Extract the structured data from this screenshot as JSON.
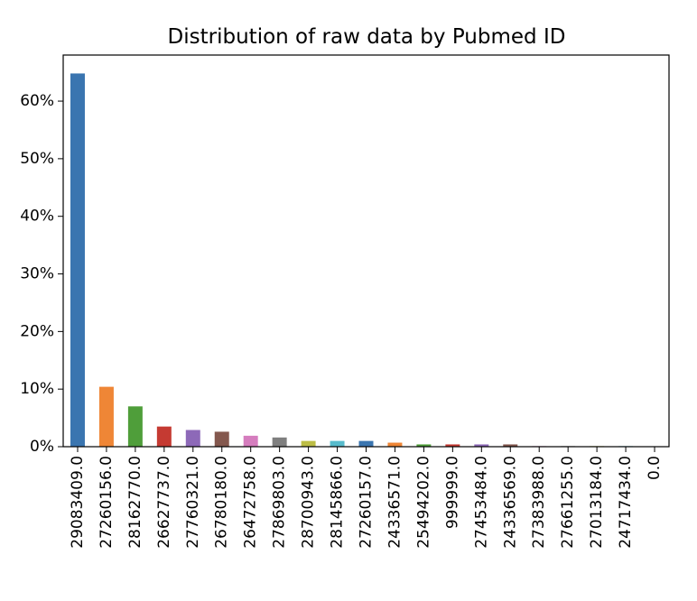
{
  "chart_data": {
    "type": "bar",
    "title": "Distribution of raw data by Pubmed ID",
    "xlabel": "",
    "ylabel": "",
    "categories": [
      "29083409.0",
      "27260156.0",
      "28162770.0",
      "26627737.0",
      "27760321.0",
      "26780180.0",
      "26472758.0",
      "27869803.0",
      "28700943.0",
      "28145866.0",
      "27260157.0",
      "24336571.0",
      "25494202.0",
      "999999.0",
      "27453484.0",
      "24336569.0",
      "27383988.0",
      "27661255.0",
      "27013184.0",
      "24717434.0",
      "0.0"
    ],
    "values": [
      0.648,
      0.104,
      0.07,
      0.035,
      0.029,
      0.026,
      0.019,
      0.016,
      0.01,
      0.01,
      0.01,
      0.007,
      0.004,
      0.004,
      0.004,
      0.004,
      0.001,
      0.001,
      0.001,
      0.001,
      0.0005
    ],
    "colors": [
      "#3a75b0",
      "#ef8636",
      "#4f9e3a",
      "#c53a32",
      "#8d69b8",
      "#84584e",
      "#d57dbe",
      "#7f7f7f",
      "#bcbd45",
      "#57bbcc",
      "#3a75b0",
      "#ef8636",
      "#4f9e3a",
      "#c53a32",
      "#8d69b8",
      "#84584e",
      "#d57dbe",
      "#7f7f7f",
      "#bcbd45",
      "#57bbcc",
      "#3a75b0"
    ],
    "yticks": [
      0,
      0.1,
      0.2,
      0.3,
      0.4,
      0.5,
      0.6
    ],
    "ytick_labels": [
      "0%",
      "10%",
      "20%",
      "30%",
      "40%",
      "50%",
      "60%"
    ],
    "ylim": [
      0,
      0.68
    ],
    "grid": false,
    "legend": "none"
  }
}
